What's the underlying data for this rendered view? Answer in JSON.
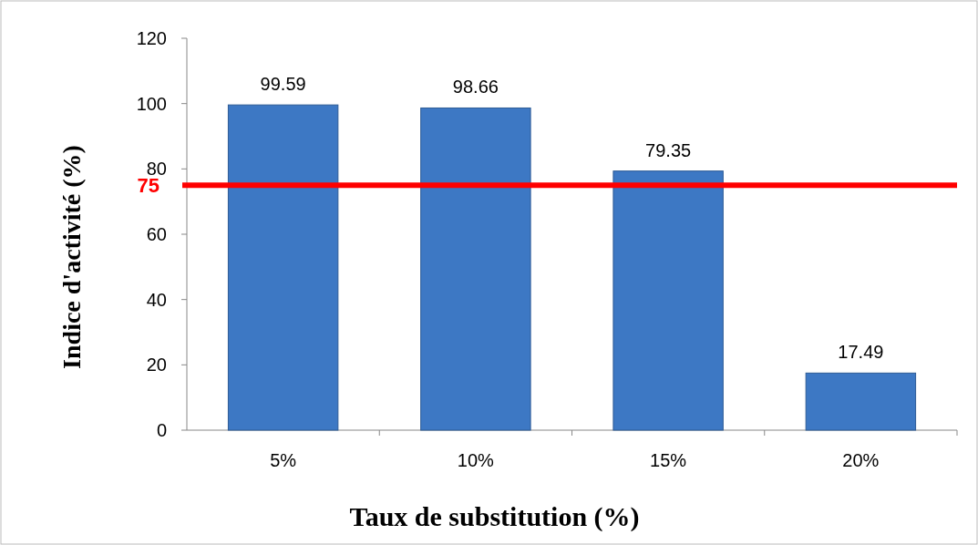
{
  "chart_data": {
    "type": "bar",
    "xlabel": "Taux de substitution (%)",
    "ylabel": "Indice d'activité (%)",
    "categories": [
      "5%",
      "10%",
      "15%",
      "20%"
    ],
    "values": [
      99.59,
      98.66,
      79.35,
      17.49
    ],
    "color": "#3d78c4",
    "ylim": [
      0,
      120
    ],
    "yticks": [
      0,
      20,
      40,
      60,
      80,
      100,
      120
    ],
    "data_labels": true,
    "ref_lines": [
      {
        "axis": "y",
        "value": 75,
        "label": "75",
        "color": "#ff0000"
      }
    ]
  }
}
